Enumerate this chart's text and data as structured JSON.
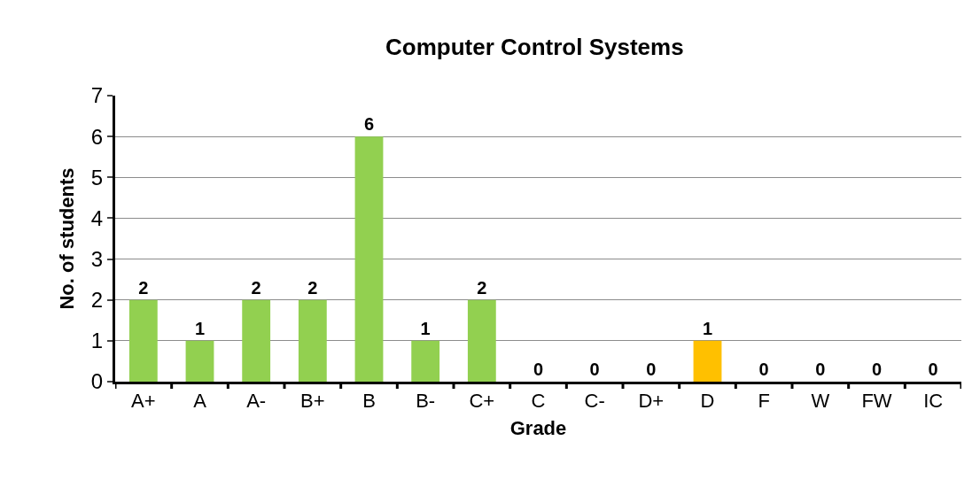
{
  "chart_data": {
    "type": "bar",
    "title": "Computer Control Systems",
    "xlabel": "Grade",
    "ylabel": "No. of students",
    "categories": [
      "A+",
      "A",
      "A-",
      "B+",
      "B",
      "B-",
      "C+",
      "C",
      "C-",
      "D+",
      "D",
      "F",
      "W",
      "FW",
      "IC"
    ],
    "values": [
      2,
      1,
      2,
      2,
      6,
      1,
      2,
      0,
      0,
      0,
      1,
      0,
      0,
      0,
      0
    ],
    "colors": [
      "#92d050",
      "#92d050",
      "#92d050",
      "#92d050",
      "#92d050",
      "#92d050",
      "#92d050",
      "#92d050",
      "#92d050",
      "#92d050",
      "#ffc000",
      "#92d050",
      "#92d050",
      "#92d050",
      "#92d050"
    ],
    "ylim": [
      0,
      7
    ],
    "yticks": [
      0,
      1,
      2,
      3,
      4,
      5,
      6,
      7
    ],
    "grid": "y",
    "data_labels": true,
    "legend": false
  }
}
